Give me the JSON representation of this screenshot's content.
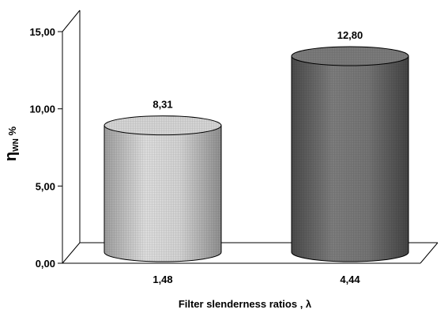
{
  "chart_data": {
    "type": "bar",
    "style": "3d-cylinder",
    "categories": [
      "1,48",
      "4,44"
    ],
    "values": [
      8.31,
      12.8
    ],
    "data_labels": [
      "8,31",
      "12,80"
    ],
    "yticks": [
      "0,00",
      "5,00",
      "10,00",
      "15,00"
    ],
    "ylim": [
      0,
      15
    ],
    "xlabel": "Filter slenderness ratios , λ",
    "ylabel": {
      "main": "η",
      "sub": "WN",
      "suffix": " %"
    },
    "grid": false,
    "legend": "none",
    "colors": {
      "bar_light": "#c8c8c8",
      "bar_light_top": "#d4d4d4",
      "bar_dark": "#6f6f6f",
      "bar_dark_top": "#7a7a7a",
      "frame": "#000000"
    }
  }
}
